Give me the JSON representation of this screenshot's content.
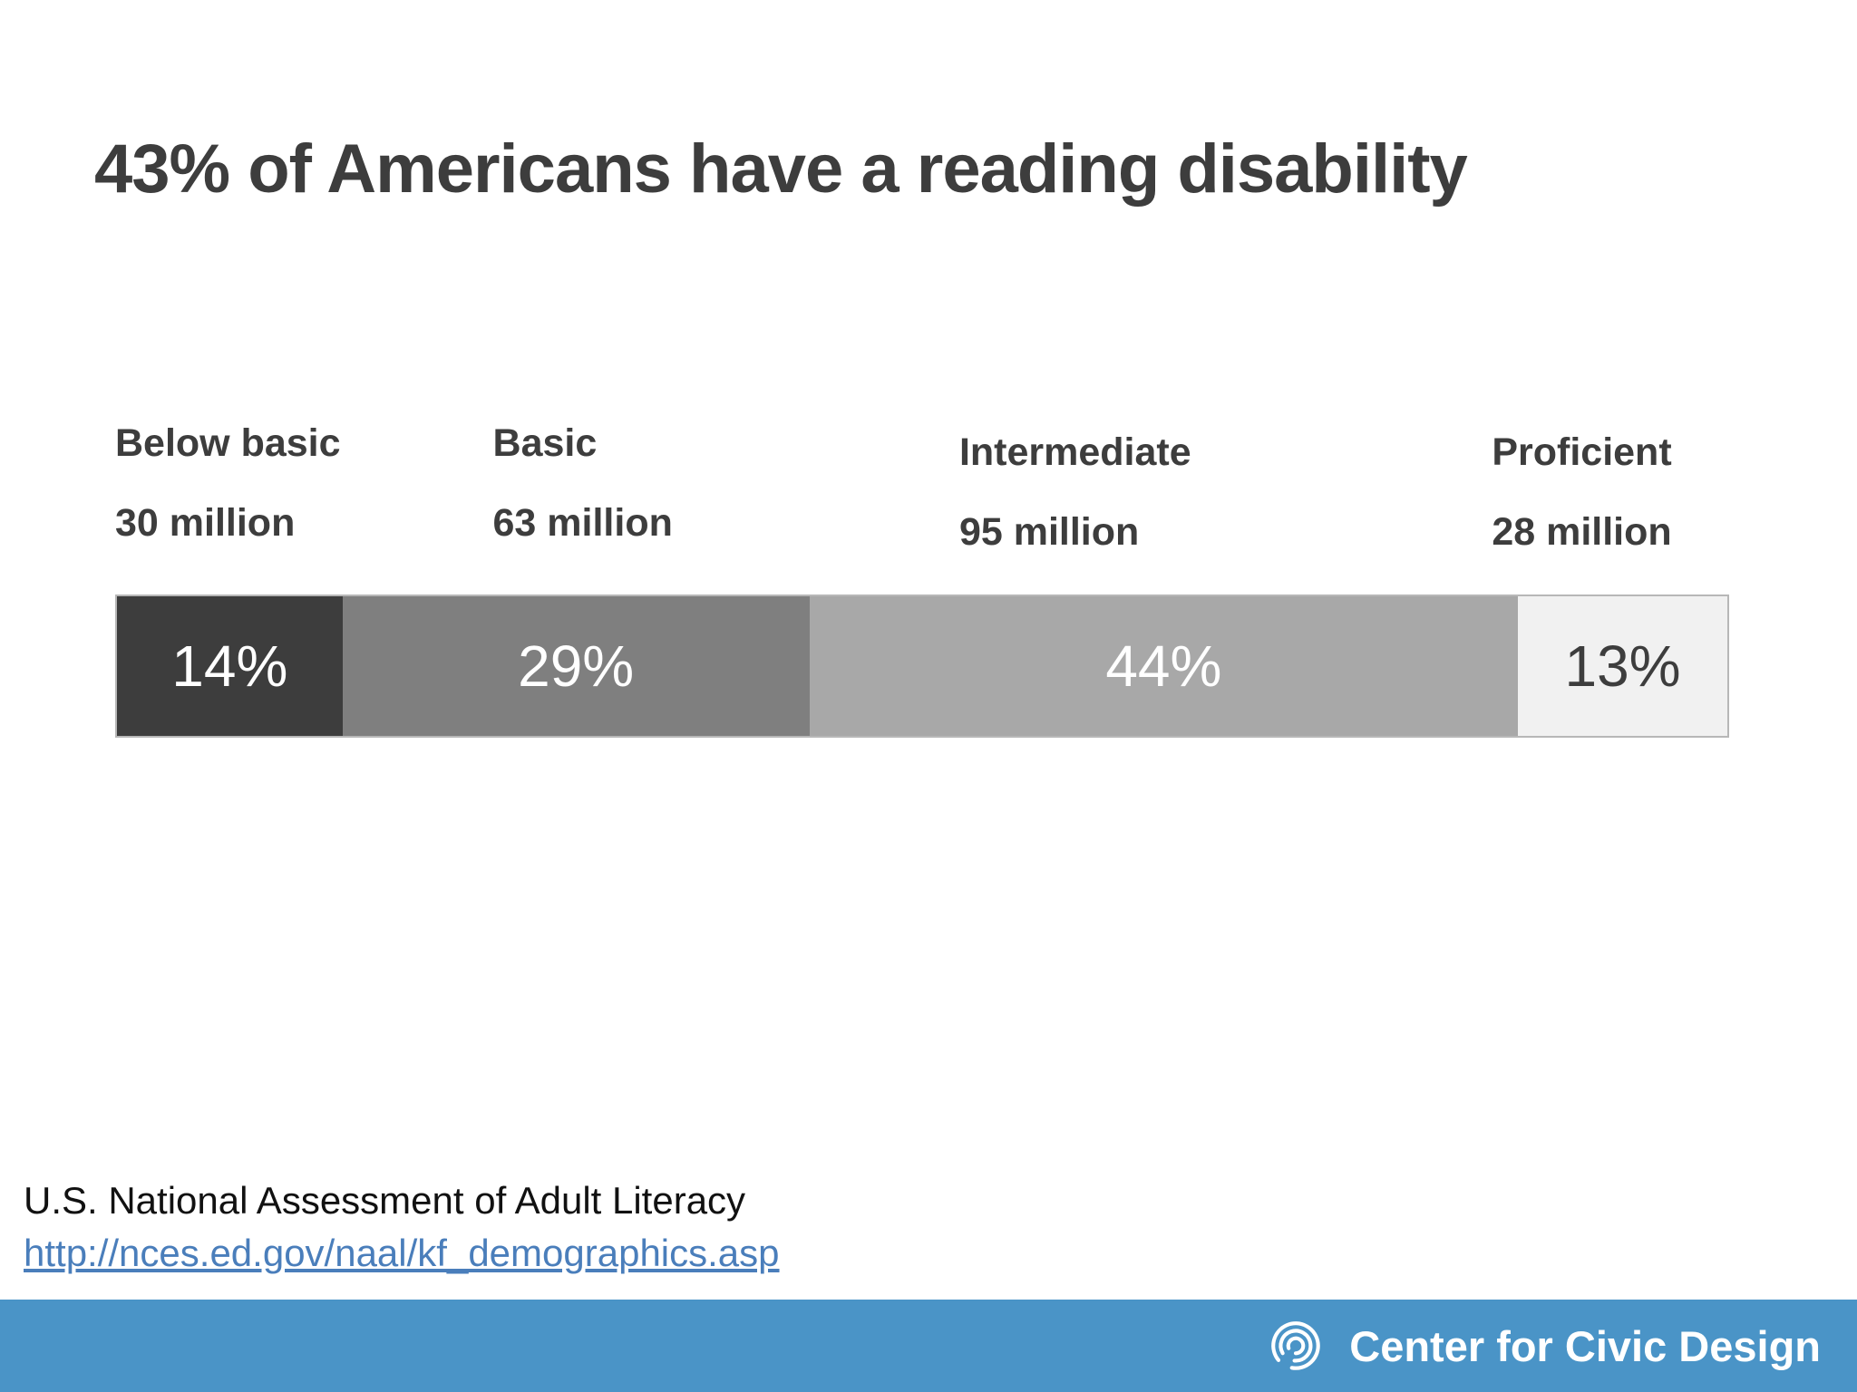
{
  "slide": {
    "title": "43% of Americans have a reading disability",
    "source": {
      "text": "U.S. National Assessment of Adult Literacy",
      "link": "http://nces.ed.gov/naal/kf_demographics.asp",
      "link_color": "#4a7ebb"
    },
    "footer": {
      "brand": "Center for Civic Design",
      "logo_icon": "civic-design-spiral-logo",
      "background_color": "#4a94c7"
    }
  },
  "chart_data": {
    "type": "bar",
    "variant": "horizontal-stacked-100pct",
    "title": "43% of Americans have a reading disability",
    "categories": [
      "Below basic",
      "Basic",
      "Intermediate",
      "Proficient"
    ],
    "series": [
      {
        "name": "Share of adults (%)",
        "values": [
          14,
          29,
          44,
          13
        ]
      },
      {
        "name": "Adults (millions)",
        "values": [
          30,
          63,
          95,
          28
        ]
      }
    ],
    "segments": [
      {
        "label": "Below basic",
        "count_label": "30 million",
        "pct": 14,
        "pct_label": "14%",
        "color": "#3d3d3d",
        "text_color": "#ffffff"
      },
      {
        "label": "Basic",
        "count_label": "63 million",
        "pct": 29,
        "pct_label": "29%",
        "color": "#7f7f7f",
        "text_color": "#ffffff"
      },
      {
        "label": "Intermediate",
        "count_label": "95 million",
        "pct": 44,
        "pct_label": "44%",
        "color": "#a8a8a8",
        "text_color": "#ffffff"
      },
      {
        "label": "Proficient",
        "count_label": "28 million",
        "pct": 13,
        "pct_label": "13%",
        "color": "#f1f1f1",
        "text_color": "#3d3d3d"
      }
    ],
    "legend": "none",
    "axis": "none",
    "xlim": [
      0,
      100
    ]
  }
}
